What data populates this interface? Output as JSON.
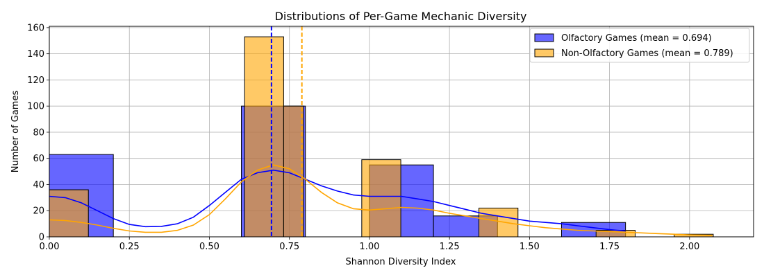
{
  "chart_data": {
    "type": "histogram",
    "title": "Distributions of Per-Game Mechanic Diversity",
    "xlabel": "Shannon Diversity Index",
    "ylabel": "Number of Games",
    "xlim": [
      0,
      2.2
    ],
    "ylim": [
      0,
      161
    ],
    "x_ticks": [
      "0.00",
      "0.25",
      "0.50",
      "0.75",
      "1.00",
      "1.25",
      "1.50",
      "1.75",
      "2.00"
    ],
    "y_ticks": [
      "0",
      "20",
      "40",
      "60",
      "80",
      "100",
      "120",
      "140",
      "160"
    ],
    "grid": true,
    "legend_position": "upper right",
    "series": [
      {
        "name": "Olfactory Games (mean = 0.694)",
        "color": "#0000ff",
        "mean": 0.694,
        "bins": [
          {
            "x0": 0.0,
            "x1": 0.2,
            "count": 63
          },
          {
            "x0": 0.6,
            "x1": 0.8,
            "count": 100
          },
          {
            "x0": 1.0,
            "x1": 1.2,
            "count": 55
          },
          {
            "x0": 1.2,
            "x1": 1.4,
            "count": 16
          },
          {
            "x0": 1.6,
            "x1": 1.8,
            "count": 11
          }
        ],
        "kde": [
          [
            0.0,
            31
          ],
          [
            0.05,
            30
          ],
          [
            0.1,
            26
          ],
          [
            0.15,
            20
          ],
          [
            0.2,
            14
          ],
          [
            0.25,
            9.5
          ],
          [
            0.3,
            7.8
          ],
          [
            0.35,
            8
          ],
          [
            0.4,
            10
          ],
          [
            0.45,
            15
          ],
          [
            0.5,
            24
          ],
          [
            0.55,
            34
          ],
          [
            0.6,
            44
          ],
          [
            0.65,
            49
          ],
          [
            0.7,
            51
          ],
          [
            0.75,
            49
          ],
          [
            0.8,
            44
          ],
          [
            0.85,
            39
          ],
          [
            0.9,
            35
          ],
          [
            0.95,
            32
          ],
          [
            1.0,
            31
          ],
          [
            1.05,
            31
          ],
          [
            1.1,
            31
          ],
          [
            1.15,
            29
          ],
          [
            1.2,
            27
          ],
          [
            1.25,
            24
          ],
          [
            1.3,
            21
          ],
          [
            1.35,
            18
          ],
          [
            1.4,
            16
          ],
          [
            1.45,
            14
          ],
          [
            1.5,
            12
          ],
          [
            1.55,
            11
          ],
          [
            1.6,
            10
          ],
          [
            1.65,
            8.5
          ],
          [
            1.7,
            7
          ],
          [
            1.75,
            5.5
          ],
          [
            1.8,
            4.5
          ]
        ]
      },
      {
        "name": "Non-Olfactory Games (mean = 0.789)",
        "color": "#ffa500",
        "mean": 0.789,
        "bins": [
          {
            "x0": 0.0,
            "x1": 0.122,
            "count": 36
          },
          {
            "x0": 0.61,
            "x1": 0.732,
            "count": 153
          },
          {
            "x0": 0.732,
            "x1": 0.794,
            "count": 100
          },
          {
            "x0": 0.976,
            "x1": 1.098,
            "count": 59
          },
          {
            "x0": 1.342,
            "x1": 1.464,
            "count": 22
          },
          {
            "x0": 1.708,
            "x1": 1.83,
            "count": 5
          },
          {
            "x0": 1.952,
            "x1": 2.074,
            "count": 2
          }
        ],
        "kde": [
          [
            0.0,
            13
          ],
          [
            0.05,
            12.5
          ],
          [
            0.1,
            11
          ],
          [
            0.15,
            9
          ],
          [
            0.2,
            6.5
          ],
          [
            0.25,
            4.5
          ],
          [
            0.3,
            3.5
          ],
          [
            0.35,
            3.5
          ],
          [
            0.4,
            5
          ],
          [
            0.45,
            9
          ],
          [
            0.5,
            17
          ],
          [
            0.55,
            29
          ],
          [
            0.6,
            42
          ],
          [
            0.65,
            51
          ],
          [
            0.7,
            55
          ],
          [
            0.75,
            52
          ],
          [
            0.8,
            44
          ],
          [
            0.85,
            34
          ],
          [
            0.9,
            26
          ],
          [
            0.95,
            21.5
          ],
          [
            1.0,
            20.5
          ],
          [
            1.05,
            21.5
          ],
          [
            1.1,
            22.5
          ],
          [
            1.15,
            22
          ],
          [
            1.2,
            20.5
          ],
          [
            1.25,
            18
          ],
          [
            1.3,
            16
          ],
          [
            1.35,
            14
          ],
          [
            1.4,
            12
          ],
          [
            1.45,
            10
          ],
          [
            1.5,
            8.5
          ],
          [
            1.55,
            7
          ],
          [
            1.6,
            6
          ],
          [
            1.65,
            5
          ],
          [
            1.7,
            4.5
          ],
          [
            1.75,
            4
          ],
          [
            1.8,
            3.5
          ],
          [
            1.85,
            3
          ],
          [
            1.9,
            2.5
          ],
          [
            1.95,
            2
          ],
          [
            2.0,
            1.5
          ],
          [
            2.05,
            1.2
          ],
          [
            2.07,
            1
          ]
        ]
      }
    ]
  }
}
